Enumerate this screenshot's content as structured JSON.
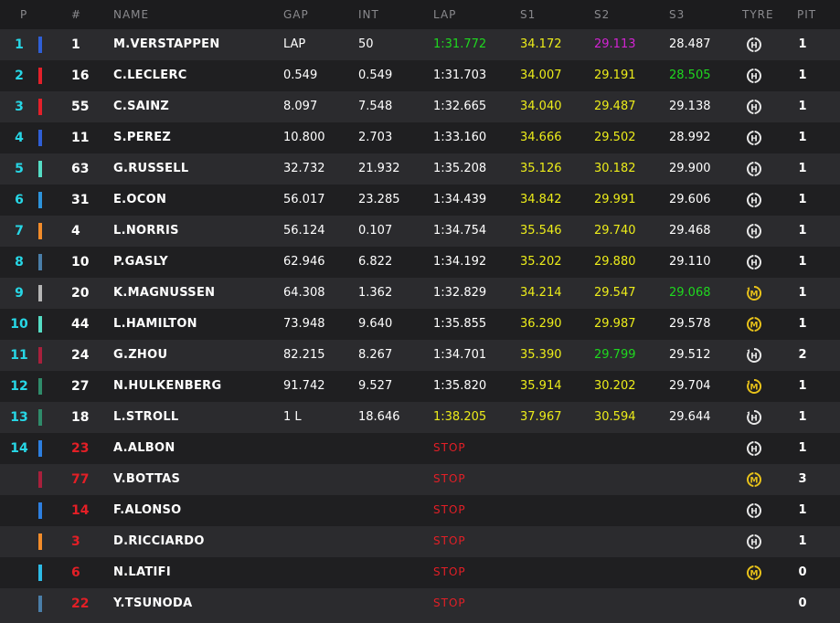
{
  "headers": {
    "pos": "P",
    "num": "#",
    "name": "NAME",
    "gap": "GAP",
    "int": "INT",
    "lap": "LAP",
    "s1": "S1",
    "s2": "S2",
    "s3": "S3",
    "tyre": "TYRE",
    "pit": "PIT"
  },
  "tyre_icons": {
    "H": "hard-tyre-icon",
    "M": "medium-tyre-icon",
    "M-new": "medium-tyre-new-icon",
    "H-new": "hard-tyre-new-icon"
  },
  "rows": [
    {
      "pos": "1",
      "team_color": "#2f5fd6",
      "num": "1",
      "name": "M.VERSTAPPEN",
      "gap": "LAP",
      "int": "50",
      "lap": "1:31.772",
      "lap_color": "green",
      "s1": "34.172",
      "s1_color": "yellow",
      "s2": "29.113",
      "s2_color": "purple",
      "s3": "28.487",
      "s3_color": "white",
      "tyre": "H",
      "tyre_new": false,
      "pit": "1"
    },
    {
      "pos": "2",
      "team_color": "#e3202a",
      "num": "16",
      "name": "C.LECLERC",
      "gap": "0.549",
      "int": "0.549",
      "lap": "1:31.703",
      "lap_color": "white",
      "s1": "34.007",
      "s1_color": "yellow",
      "s2": "29.191",
      "s2_color": "yellow",
      "s3": "28.505",
      "s3_color": "green",
      "tyre": "H",
      "tyre_new": false,
      "pit": "1"
    },
    {
      "pos": "3",
      "team_color": "#e3202a",
      "num": "55",
      "name": "C.SAINZ",
      "gap": "8.097",
      "int": "7.548",
      "lap": "1:32.665",
      "lap_color": "white",
      "s1": "34.040",
      "s1_color": "yellow",
      "s2": "29.487",
      "s2_color": "yellow",
      "s3": "29.138",
      "s3_color": "white",
      "tyre": "H",
      "tyre_new": false,
      "pit": "1"
    },
    {
      "pos": "4",
      "team_color": "#2f5fd6",
      "num": "11",
      "name": "S.PEREZ",
      "gap": "10.800",
      "int": "2.703",
      "lap": "1:33.160",
      "lap_color": "white",
      "s1": "34.666",
      "s1_color": "yellow",
      "s2": "29.502",
      "s2_color": "yellow",
      "s3": "28.992",
      "s3_color": "white",
      "tyre": "H",
      "tyre_new": false,
      "pit": "1"
    },
    {
      "pos": "5",
      "team_color": "#55dcc4",
      "num": "63",
      "name": "G.RUSSELL",
      "gap": "32.732",
      "int": "21.932",
      "lap": "1:35.208",
      "lap_color": "white",
      "s1": "35.126",
      "s1_color": "yellow",
      "s2": "30.182",
      "s2_color": "yellow",
      "s3": "29.900",
      "s3_color": "white",
      "tyre": "H",
      "tyre_new": false,
      "pit": "1"
    },
    {
      "pos": "6",
      "team_color": "#2d93db",
      "num": "31",
      "name": "E.OCON",
      "gap": "56.017",
      "int": "23.285",
      "lap": "1:34.439",
      "lap_color": "white",
      "s1": "34.842",
      "s1_color": "yellow",
      "s2": "29.991",
      "s2_color": "yellow",
      "s3": "29.606",
      "s3_color": "white",
      "tyre": "H",
      "tyre_new": false,
      "pit": "1"
    },
    {
      "pos": "7",
      "team_color": "#f28c2a",
      "num": "4",
      "name": "L.NORRIS",
      "gap": "56.124",
      "int": "0.107",
      "lap": "1:34.754",
      "lap_color": "white",
      "s1": "35.546",
      "s1_color": "yellow",
      "s2": "29.740",
      "s2_color": "yellow",
      "s3": "29.468",
      "s3_color": "white",
      "tyre": "H",
      "tyre_new": false,
      "pit": "1"
    },
    {
      "pos": "8",
      "team_color": "#4a7ea8",
      "num": "10",
      "name": "P.GASLY",
      "gap": "62.946",
      "int": "6.822",
      "lap": "1:34.192",
      "lap_color": "white",
      "s1": "35.202",
      "s1_color": "yellow",
      "s2": "29.880",
      "s2_color": "yellow",
      "s3": "29.110",
      "s3_color": "white",
      "tyre": "H",
      "tyre_new": false,
      "pit": "1"
    },
    {
      "pos": "9",
      "team_color": "#b5b5b5",
      "num": "20",
      "name": "K.MAGNUSSEN",
      "gap": "64.308",
      "int": "1.362",
      "lap": "1:32.829",
      "lap_color": "white",
      "s1": "34.214",
      "s1_color": "yellow",
      "s2": "29.547",
      "s2_color": "yellow",
      "s3": "29.068",
      "s3_color": "green",
      "tyre": "M",
      "tyre_new": true,
      "pit": "1"
    },
    {
      "pos": "10",
      "team_color": "#55dcc4",
      "num": "44",
      "name": "L.HAMILTON",
      "gap": "73.948",
      "int": "9.640",
      "lap": "1:35.855",
      "lap_color": "white",
      "s1": "36.290",
      "s1_color": "yellow",
      "s2": "29.987",
      "s2_color": "yellow",
      "s3": "29.578",
      "s3_color": "white",
      "tyre": "M",
      "tyre_new": false,
      "pit": "1"
    },
    {
      "pos": "11",
      "team_color": "#a8203c",
      "num": "24",
      "name": "G.ZHOU",
      "gap": "82.215",
      "int": "8.267",
      "lap": "1:34.701",
      "lap_color": "white",
      "s1": "35.390",
      "s1_color": "yellow",
      "s2": "29.799",
      "s2_color": "green",
      "s3": "29.512",
      "s3_color": "white",
      "tyre": "H",
      "tyre_new": true,
      "pit": "2"
    },
    {
      "pos": "12",
      "team_color": "#2f8b6a",
      "num": "27",
      "name": "N.HULKENBERG",
      "gap": "91.742",
      "int": "9.527",
      "lap": "1:35.820",
      "lap_color": "white",
      "s1": "35.914",
      "s1_color": "yellow",
      "s2": "30.202",
      "s2_color": "yellow",
      "s3": "29.704",
      "s3_color": "white",
      "tyre": "M",
      "tyre_new": true,
      "pit": "1"
    },
    {
      "pos": "13",
      "team_color": "#2f8b6a",
      "num": "18",
      "name": "L.STROLL",
      "gap": "1 L",
      "int": "18.646",
      "lap": "1:38.205",
      "lap_color": "yellow",
      "s1": "37.967",
      "s1_color": "yellow",
      "s2": "30.594",
      "s2_color": "yellow",
      "s3": "29.644",
      "s3_color": "white",
      "tyre": "H",
      "tyre_new": true,
      "pit": "1"
    },
    {
      "pos": "14",
      "team_color": "#2d7fe0",
      "num": "23",
      "num_red": true,
      "name": "A.ALBON",
      "stop": "STOP",
      "tyre": "H",
      "tyre_new": false,
      "pit": "1"
    },
    {
      "pos": "",
      "team_color": "#a8203c",
      "num": "77",
      "num_red": true,
      "name": "V.BOTTAS",
      "stop": "STOP",
      "tyre": "M",
      "tyre_new": false,
      "pit": "3"
    },
    {
      "pos": "",
      "team_color": "#2d7fe0",
      "num": "14",
      "num_red": true,
      "name": "F.ALONSO",
      "stop": "STOP",
      "tyre": "H",
      "tyre_new": false,
      "pit": "1"
    },
    {
      "pos": "",
      "team_color": "#f28c2a",
      "num": "3",
      "num_red": true,
      "name": "D.RICCIARDO",
      "stop": "STOP",
      "tyre": "H",
      "tyre_new": false,
      "pit": "1"
    },
    {
      "pos": "",
      "team_color": "#2dbbe6",
      "num": "6",
      "num_red": true,
      "name": "N.LATIFI",
      "stop": "STOP",
      "tyre": "M",
      "tyre_new": false,
      "pit": "0"
    },
    {
      "pos": "",
      "team_color": "#4a7ea8",
      "num": "22",
      "num_red": true,
      "name": "Y.TSUNODA",
      "stop": "STOP",
      "tyre": "",
      "tyre_new": false,
      "pit": "0"
    }
  ]
}
